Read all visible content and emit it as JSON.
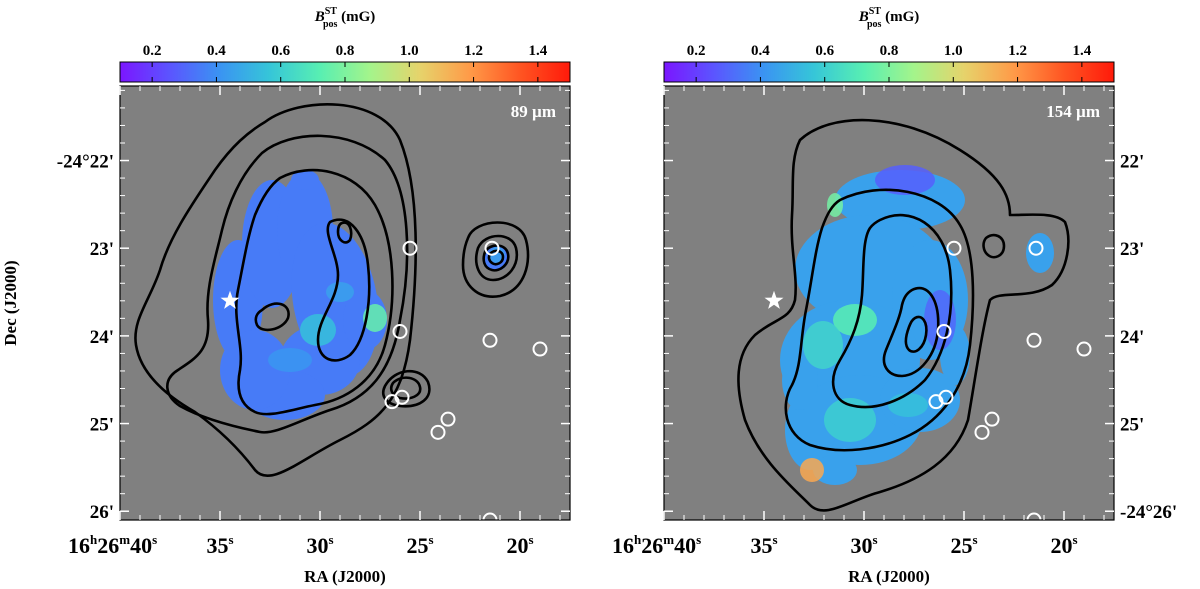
{
  "chart_data": [
    {
      "type": "heatmap",
      "title": "",
      "panel_label": "89 µm",
      "colorbar": {
        "label_main": "B",
        "label_sup": "ST",
        "label_sub": "pos",
        "label_unit": " (mG)",
        "range": [
          0.1,
          1.5
        ],
        "ticks": [
          0.2,
          0.4,
          0.6,
          0.8,
          1.0,
          1.2,
          1.4
        ],
        "tick_labels": [
          "0.2",
          "0.4",
          "0.6",
          "0.8",
          "1.0",
          "1.2",
          "1.4"
        ],
        "colors": [
          "#7b16ff",
          "#5b55ff",
          "#3a94f2",
          "#36c6d8",
          "#58efb2",
          "#a4f48b",
          "#e6d36b",
          "#ff9a48",
          "#ff5522",
          "#ff1a0a"
        ]
      },
      "xlabel": "RA (J2000)",
      "ylabel": "Dec (J2000)",
      "x_ticks": [
        {
          "h": "16",
          "m": "26",
          "s": "40"
        },
        {
          "h": "",
          "m": "",
          "s": "35"
        },
        {
          "h": "",
          "m": "",
          "s": "30"
        },
        {
          "h": "",
          "m": "",
          "s": "25"
        },
        {
          "h": "",
          "m": "",
          "s": "20"
        }
      ],
      "y_ticks": [
        {
          "deg": "-24°",
          "min": "22'"
        },
        {
          "deg": "",
          "min": "23'"
        },
        {
          "deg": "",
          "min": "24'"
        },
        {
          "deg": "",
          "min": "25'"
        },
        {
          "deg": "",
          "min": "26'"
        }
      ],
      "ra_range_s": [
        40.0,
        17.5
      ],
      "dec_range_arcmin": [
        21.15,
        26.1
      ],
      "field_mean_value": 0.35,
      "star": {
        "ra_s": 34.5,
        "dec_arcmin": 23.6
      },
      "sources": [
        {
          "ra_s": 25.5,
          "dec_arcmin": 23.0
        },
        {
          "ra_s": 26.0,
          "dec_arcmin": 23.95
        },
        {
          "ra_s": 21.5,
          "dec_arcmin": 24.05
        },
        {
          "ra_s": 19.0,
          "dec_arcmin": 24.15
        },
        {
          "ra_s": 26.4,
          "dec_arcmin": 24.75
        },
        {
          "ra_s": 25.9,
          "dec_arcmin": 24.7
        },
        {
          "ra_s": 23.6,
          "dec_arcmin": 24.95
        },
        {
          "ra_s": 24.1,
          "dec_arcmin": 25.1
        },
        {
          "ra_s": 21.5,
          "dec_arcmin": 26.1
        },
        {
          "ra_s": 21.4,
          "dec_arcmin": 23.0
        }
      ]
    },
    {
      "type": "heatmap",
      "title": "",
      "panel_label": "154 µm",
      "colorbar": {
        "label_main": "B",
        "label_sup": "ST",
        "label_sub": "pos",
        "label_unit": " (mG)",
        "range": [
          0.1,
          1.5
        ],
        "ticks": [
          0.2,
          0.4,
          0.6,
          0.8,
          1.0,
          1.2,
          1.4
        ],
        "tick_labels": [
          "0.2",
          "0.4",
          "0.6",
          "0.8",
          "1.0",
          "1.2",
          "1.4"
        ],
        "colors": [
          "#7b16ff",
          "#5b55ff",
          "#3a94f2",
          "#36c6d8",
          "#58efb2",
          "#a4f48b",
          "#e6d36b",
          "#ff9a48",
          "#ff5522",
          "#ff1a0a"
        ]
      },
      "xlabel": "RA (J2000)",
      "ylabel": "",
      "x_ticks": [
        {
          "h": "16",
          "m": "26",
          "s": "40"
        },
        {
          "h": "",
          "m": "",
          "s": "35"
        },
        {
          "h": "",
          "m": "",
          "s": "30"
        },
        {
          "h": "",
          "m": "",
          "s": "25"
        },
        {
          "h": "",
          "m": "",
          "s": "20"
        }
      ],
      "y_ticks": [
        {
          "deg": "",
          "min": "22'"
        },
        {
          "deg": "",
          "min": "23'"
        },
        {
          "deg": "",
          "min": "24'"
        },
        {
          "deg": "",
          "min": "25'"
        },
        {
          "deg": "-24°",
          "min": "26'"
        }
      ],
      "ra_range_s": [
        40.0,
        17.5
      ],
      "dec_range_arcmin": [
        21.15,
        26.1
      ],
      "field_mean_value": 0.45,
      "star": {
        "ra_s": 34.5,
        "dec_arcmin": 23.6
      },
      "sources": [
        {
          "ra_s": 25.5,
          "dec_arcmin": 23.0
        },
        {
          "ra_s": 26.0,
          "dec_arcmin": 23.95
        },
        {
          "ra_s": 21.5,
          "dec_arcmin": 24.05
        },
        {
          "ra_s": 19.0,
          "dec_arcmin": 24.15
        },
        {
          "ra_s": 26.4,
          "dec_arcmin": 24.75
        },
        {
          "ra_s": 25.9,
          "dec_arcmin": 24.7
        },
        {
          "ra_s": 23.6,
          "dec_arcmin": 24.95
        },
        {
          "ra_s": 24.1,
          "dec_arcmin": 25.1
        },
        {
          "ra_s": 21.5,
          "dec_arcmin": 26.1
        },
        {
          "ra_s": 21.4,
          "dec_arcmin": 23.0
        }
      ]
    }
  ],
  "colors": {
    "background": "#808080",
    "contour": "#000000",
    "marker": "#ffffff"
  }
}
